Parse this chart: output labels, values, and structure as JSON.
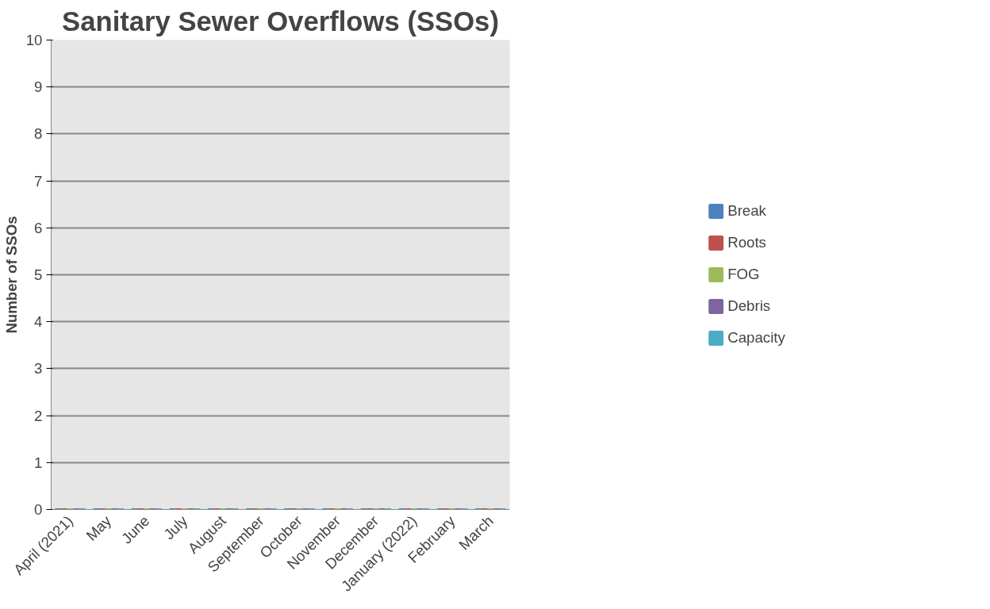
{
  "chart_data": {
    "type": "bar",
    "title": "Sanitary Sewer Overflows (SSOs)",
    "ylabel": "Number of SSOs",
    "categories": [
      "April (2021)",
      "May",
      "June",
      "July",
      "August",
      "September",
      "October",
      "November",
      "December",
      "January (2022)",
      "February",
      "March"
    ],
    "series": [
      {
        "name": "Break",
        "color": "#4f81bd",
        "values": [
          0,
          0,
          0,
          0,
          0,
          0,
          0,
          0,
          0,
          0,
          0,
          0
        ]
      },
      {
        "name": "Roots",
        "color": "#c0504d",
        "values": [
          0,
          0,
          0,
          0,
          0,
          0,
          0,
          0,
          0,
          0,
          0,
          0
        ]
      },
      {
        "name": "FOG",
        "color": "#9bbb59",
        "values": [
          0,
          0,
          0,
          0,
          0,
          0,
          0,
          0,
          0,
          0,
          0,
          0
        ]
      },
      {
        "name": "Debris",
        "color": "#8064a2",
        "values": [
          0,
          0,
          0,
          0,
          0,
          0,
          0,
          0,
          0,
          0,
          0,
          0
        ]
      },
      {
        "name": "Capacity",
        "color": "#4bacc6",
        "values": [
          0,
          0,
          0,
          0,
          0,
          0,
          0,
          0,
          0,
          0,
          0,
          0
        ]
      }
    ],
    "ylim": [
      0,
      10
    ],
    "yticks": [
      0,
      1,
      2,
      3,
      4,
      5,
      6,
      7,
      8,
      9,
      10
    ],
    "grid": "y",
    "legend": "right"
  }
}
